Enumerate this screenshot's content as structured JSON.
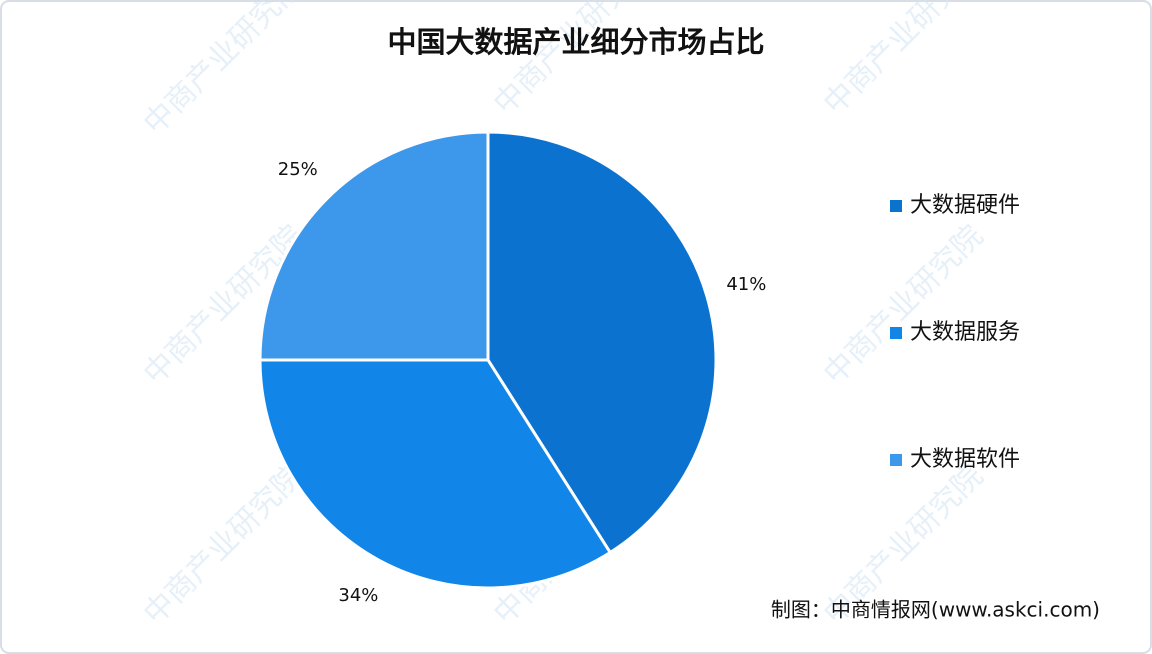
{
  "chart_data": {
    "type": "pie",
    "title": "中国大数据产业细分市场占比",
    "categories": [
      "大数据硬件",
      "大数据服务",
      "大数据软件"
    ],
    "values": [
      41,
      34,
      25
    ],
    "value_labels": [
      "41%",
      "34%",
      "25%"
    ],
    "colors": [
      "#0b72d0",
      "#1185e8",
      "#3d97ea"
    ],
    "legend": "right",
    "source": "制图：中商情报网(www.askci.com)",
    "watermark": "中商产业研究院"
  }
}
